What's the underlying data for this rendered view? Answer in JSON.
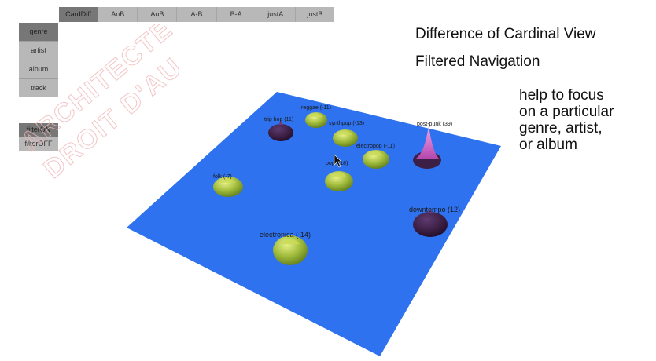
{
  "toolbar": {
    "tabs": [
      {
        "id": "carddiff",
        "label": "CardDiff",
        "active": true
      },
      {
        "id": "anb",
        "label": "AnB",
        "active": false
      },
      {
        "id": "aub",
        "label": "AuB",
        "active": false
      },
      {
        "id": "a-b",
        "label": "A-B",
        "active": false
      },
      {
        "id": "b-a",
        "label": "B-A",
        "active": false
      },
      {
        "id": "justa",
        "label": "justA",
        "active": false
      },
      {
        "id": "justb",
        "label": "justB",
        "active": false
      }
    ]
  },
  "level_panel": {
    "buttons": [
      {
        "id": "genre",
        "label": "genre",
        "active": true
      },
      {
        "id": "artist",
        "label": "artist",
        "active": false
      },
      {
        "id": "album",
        "label": "album",
        "active": false
      },
      {
        "id": "track",
        "label": "track",
        "active": false
      }
    ]
  },
  "filter_panel": {
    "buttons": [
      {
        "id": "filteron",
        "label": "filterON",
        "active": true
      },
      {
        "id": "filteroff",
        "label": "filterOFF",
        "active": false
      }
    ]
  },
  "watermark": {
    "lines": [
      "ARCHITECTE",
      "DROIT D'AU"
    ]
  },
  "titles": {
    "line1": "Difference of Cardinal View",
    "line2": "Filtered Navigation"
  },
  "note": {
    "lines": [
      "help to focus",
      "on a particular",
      "genre, artist,",
      "or album"
    ]
  },
  "colors": {
    "plane": "#2f72ef",
    "positive": "#9fba3a",
    "negative": "#3c1f44",
    "highlight": "#d66fd0"
  },
  "peaks": [
    {
      "label": "reggae (-11)",
      "kind": "positive"
    },
    {
      "label": "trip hop (11)",
      "kind": "negative"
    },
    {
      "label": "synthpop (-13)",
      "kind": "positive"
    },
    {
      "label": "post-punk (39)",
      "kind": "highlight"
    },
    {
      "label": "electropop (-11)",
      "kind": "positive"
    },
    {
      "label": "pop (-18)",
      "kind": "positive"
    },
    {
      "label": "folk (-7)",
      "kind": "positive"
    },
    {
      "label": "downtempo (12)",
      "kind": "negative"
    },
    {
      "label": "electronica (-14)",
      "kind": "positive"
    }
  ]
}
